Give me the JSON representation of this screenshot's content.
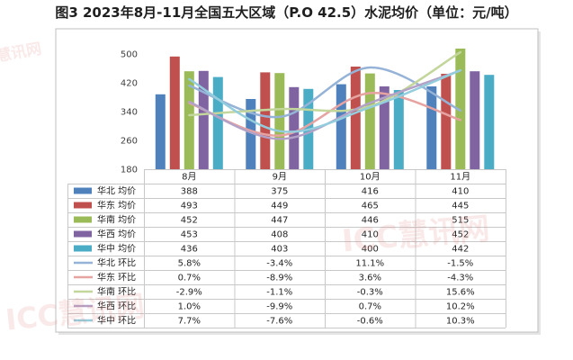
{
  "title": "图3 2023年8月-11月全国五大区域（P.O 42.5）水泥均价（单位：元/吨）",
  "watermark": "ICC慧讯网",
  "chart_data": {
    "type": "bar",
    "categories": [
      "8月",
      "9月",
      "10月",
      "11月"
    ],
    "ylim": [
      180,
      500
    ],
    "yticks": [
      180,
      260,
      340,
      420,
      500
    ],
    "grid": false,
    "legend": "bottom",
    "series": [
      {
        "name": "华北 均价",
        "type": "bar",
        "color": "#4f81bd",
        "values": [
          388,
          375,
          416,
          410
        ]
      },
      {
        "name": "华东 均价",
        "type": "bar",
        "color": "#c0504d",
        "values": [
          493,
          449,
          465,
          445
        ]
      },
      {
        "name": "华南 均价",
        "type": "bar",
        "color": "#9bbb59",
        "values": [
          452,
          447,
          446,
          515
        ]
      },
      {
        "name": "华西 均价",
        "type": "bar",
        "color": "#8064a2",
        "values": [
          453,
          408,
          410,
          452
        ]
      },
      {
        "name": "华中 均价",
        "type": "bar",
        "color": "#4bacc6",
        "values": [
          436,
          403,
          400,
          442
        ]
      },
      {
        "name": "华北 环比",
        "type": "line",
        "unit": "%",
        "color": "#95b3d7",
        "values": [
          5.8,
          -3.4,
          11.1,
          -1.5
        ]
      },
      {
        "name": "华东 环比",
        "type": "line",
        "unit": "%",
        "color": "#e6a3a1",
        "values": [
          0.7,
          -8.9,
          3.6,
          -4.3
        ]
      },
      {
        "name": "华南 环比",
        "type": "line",
        "unit": "%",
        "color": "#c3d69b",
        "values": [
          -2.9,
          -1.1,
          -0.3,
          15.6
        ]
      },
      {
        "name": "华西 环比",
        "type": "line",
        "unit": "%",
        "color": "#b3a2c7",
        "values": [
          1.0,
          -9.9,
          0.7,
          10.2
        ]
      },
      {
        "name": "华中 环比",
        "type": "line",
        "unit": "%",
        "color": "#93cddd",
        "values": [
          7.7,
          -7.6,
          -0.6,
          10.3
        ]
      }
    ]
  }
}
